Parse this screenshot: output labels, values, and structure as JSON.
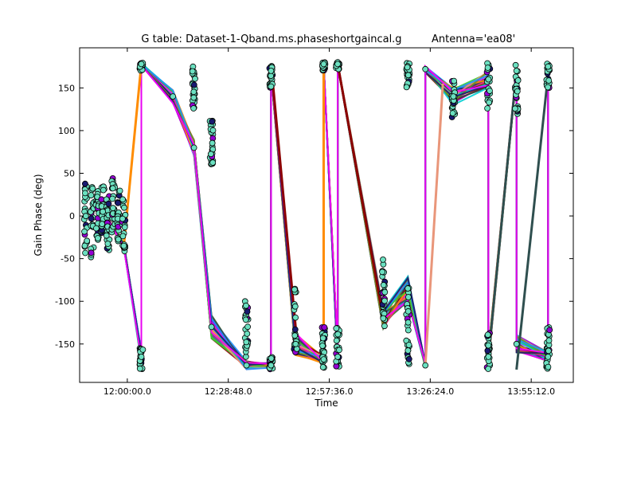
{
  "chart_data": {
    "type": "line",
    "title": "G table: Dataset-1-Qband.ms.phaseshortgaincal.g",
    "title_right": "Antenna='ea08'",
    "xlabel": "Time",
    "ylabel": "Gain Phase (deg)",
    "xlim": [
      "11:46:24",
      "14:07:12"
    ],
    "ylim": [
      -195,
      197
    ],
    "x_ticks": [
      "12:00:00.0",
      "12:28:48.0",
      "12:57:36.0",
      "13:26:24.0",
      "13:55:12.0"
    ],
    "y_ticks": [
      -150,
      -100,
      -50,
      0,
      50,
      100,
      150
    ],
    "grid": false,
    "legend": "none",
    "marker_color": "#6be0c0",
    "series_colors": [
      "#ff1493",
      "#8b0000",
      "#9400d3",
      "#2f4f4f",
      "#ff8c00",
      "#00ced1",
      "#32cd32",
      "#e9967a",
      "#6b8e23",
      "#1e90ff",
      "#191970",
      "#ff00ff"
    ],
    "path_x": [
      "11:53:00",
      "11:59:00",
      "12:04:00",
      "12:04:00",
      "12:13:00",
      "12:19:00",
      "12:24:00",
      "12:34:00",
      "12:41:00",
      "12:41:00",
      "12:48:00",
      "12:56:00",
      "12:56:00",
      "13:00:00",
      "13:00:00",
      "13:13:00",
      "13:20:00",
      "13:25:00",
      "13:25:00",
      "13:33:00",
      "13:43:00",
      "13:43:00",
      "13:51:00",
      "13:51:00",
      "14:00:00",
      "14:00:00"
    ],
    "path_y": [
      5,
      -35,
      -165,
      178,
      140,
      80,
      -130,
      -175,
      -175,
      170,
      -150,
      -168,
      178,
      -165,
      178,
      -120,
      -85,
      -175,
      172,
      140,
      160,
      -165,
      170,
      -150,
      -165,
      175
    ],
    "spreads": [
      6,
      6,
      14,
      4,
      16,
      20,
      28,
      10,
      6,
      8,
      28,
      10,
      4,
      18,
      4,
      24,
      30,
      6,
      8,
      20,
      20,
      16,
      8,
      22,
      12,
      8
    ],
    "dense_groups": [
      {
        "x": "11:48:10",
        "y_range": [
          -45,
          40
        ]
      },
      {
        "x": "11:50:00",
        "y_range": [
          -55,
          35
        ]
      },
      {
        "x": "11:51:30",
        "y_range": [
          -30,
          30
        ]
      },
      {
        "x": "11:53:00",
        "y_range": [
          -20,
          35
        ]
      },
      {
        "x": "11:54:30",
        "y_range": [
          -40,
          25
        ]
      },
      {
        "x": "11:56:00",
        "y_range": [
          -20,
          45
        ]
      },
      {
        "x": "11:57:30",
        "y_range": [
          -35,
          30
        ]
      },
      {
        "x": "11:59:00",
        "y_range": [
          -45,
          20
        ]
      },
      {
        "x": "12:04:00",
        "y_range": [
          -180,
          -155
        ]
      },
      {
        "x": "12:04:00",
        "y_range": [
          170,
          180
        ]
      },
      {
        "x": "12:19:00",
        "y_range": [
          125,
          175
        ]
      },
      {
        "x": "12:24:00",
        "y_range": [
          55,
          115
        ]
      },
      {
        "x": "12:34:00",
        "y_range": [
          -165,
          -95
        ]
      },
      {
        "x": "12:41:00",
        "y_range": [
          -180,
          -165
        ]
      },
      {
        "x": "12:41:00",
        "y_range": [
          150,
          180
        ]
      },
      {
        "x": "12:48:00",
        "y_range": [
          -160,
          -85
        ]
      },
      {
        "x": "12:56:00",
        "y_range": [
          -178,
          -130
        ]
      },
      {
        "x": "12:56:00",
        "y_range": [
          170,
          180
        ]
      },
      {
        "x": "13:00:00",
        "y_range": [
          -178,
          -130
        ]
      },
      {
        "x": "13:00:00",
        "y_range": [
          172,
          180
        ]
      },
      {
        "x": "13:13:00",
        "y_range": [
          -130,
          -50
        ]
      },
      {
        "x": "13:20:00",
        "y_range": [
          -180,
          -80
        ]
      },
      {
        "x": "13:20:00",
        "y_range": [
          150,
          180
        ]
      },
      {
        "x": "13:33:00",
        "y_range": [
          115,
          160
        ]
      },
      {
        "x": "13:43:00",
        "y_range": [
          125,
          180
        ]
      },
      {
        "x": "13:43:00",
        "y_range": [
          -180,
          -135
        ]
      },
      {
        "x": "13:51:00",
        "y_range": [
          115,
          180
        ]
      },
      {
        "x": "14:00:00",
        "y_range": [
          -180,
          -130
        ]
      },
      {
        "x": "14:00:00",
        "y_range": [
          150,
          180
        ]
      }
    ],
    "extra_segments": [
      {
        "x1": "12:04:00",
        "y1": 178,
        "x2": "11:59:00",
        "y2": -35,
        "color": "#ff8c00"
      },
      {
        "x1": "12:56:00",
        "y1": 178,
        "x2": "12:56:00",
        "y2": -175,
        "color": "#ff8c00"
      },
      {
        "x1": "13:00:00",
        "y1": 178,
        "x2": "13:13:00",
        "y2": -120,
        "color": "#8b0000"
      },
      {
        "x1": "12:41:00",
        "y1": 178,
        "x2": "12:48:00",
        "y2": -130,
        "color": "#8b0000"
      },
      {
        "x1": "13:25:00",
        "y1": -175,
        "x2": "13:30:00",
        "y2": 155,
        "color": "#e9967a"
      },
      {
        "x1": "13:43:00",
        "y1": -165,
        "x2": "13:51:00",
        "y2": 170,
        "color": "#2f4f4f"
      },
      {
        "x1": "13:51:00",
        "y1": -180,
        "x2": "14:00:00",
        "y2": 165,
        "color": "#2f4f4f"
      }
    ]
  }
}
